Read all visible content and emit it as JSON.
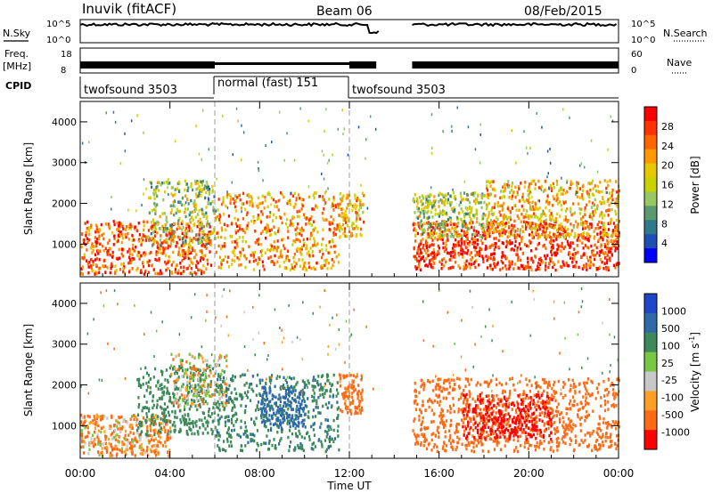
{
  "header": {
    "station": "Inuvik (fitACF)",
    "beam": "Beam 06",
    "date": "08/Feb/2015"
  },
  "aux": {
    "nsky_label": "N.Sky",
    "nsky_ticks": [
      "10^5",
      "10^0"
    ],
    "nsearch_label": "N.Search",
    "nsearch_ticks": [
      "10^5",
      "10^0"
    ],
    "freq_label_1": "Freq.",
    "freq_label_2": "[MHz]",
    "freq_ticks": [
      "18",
      "8"
    ],
    "nave_label": "Nave",
    "nave_ticks": [
      "60",
      "0"
    ],
    "cpid_label": "CPID",
    "cpid_segments": [
      {
        "label": "twofsound 3503",
        "start_hour": 0,
        "end_hour": 6
      },
      {
        "label": "normal (fast) 151",
        "start_hour": 6,
        "end_hour": 12
      },
      {
        "label": "twofsound 3503",
        "start_hour": 12,
        "end_hour": 24
      }
    ]
  },
  "colorbars": {
    "power": {
      "label": "Power [dB]",
      "ticks": [
        "28",
        "24",
        "20",
        "16",
        "12",
        "8",
        "4"
      ],
      "colors": [
        "#ff0000",
        "#ff3300",
        "#ff6600",
        "#ff9900",
        "#e8c800",
        "#c8d200",
        "#96c864",
        "#5a9a6e",
        "#2e7a8a",
        "#1e50b4",
        "#0000ff"
      ]
    },
    "velocity": {
      "label": "Velocity [m s",
      "label_sup": "-1",
      "label_end": "]",
      "ticks": [
        "1000",
        "500",
        "100",
        "25",
        "-25",
        "-100",
        "-500",
        "-1000"
      ],
      "colors": [
        "#1e46c8",
        "#2e6aa8",
        "#3c8a5a",
        "#78c846",
        "#c8c8c8",
        "#ffa028",
        "#ff6a14",
        "#ff0000"
      ]
    }
  },
  "chart_data": [
    {
      "type": "heatmap",
      "panel": "power",
      "ylabel": "Slant Range [km]",
      "ylim": [
        200,
        4500
      ],
      "yticks": [
        1000,
        2000,
        3000,
        4000
      ],
      "xlim": [
        0,
        24
      ],
      "xticks": [
        "00:00",
        "04:00",
        "08:00",
        "12:00",
        "16:00",
        "20:00",
        "00:00"
      ],
      "vertical_dashed_lines_hours": [
        6,
        12
      ],
      "data_gap_hours": [
        13.2,
        14.8
      ],
      "blobs": [
        {
          "t0": 0.0,
          "t1": 5.8,
          "r0": 300,
          "r1": 1600,
          "power": 26
        },
        {
          "t0": 3.0,
          "t1": 6.0,
          "r0": 1000,
          "r1": 2600,
          "power": 14
        },
        {
          "t0": 6.0,
          "t1": 11.5,
          "r0": 400,
          "r1": 2300,
          "power": 22
        },
        {
          "t0": 11.5,
          "t1": 12.6,
          "r0": 1200,
          "r1": 2300,
          "power": 20
        },
        {
          "t0": 14.8,
          "t1": 24.0,
          "r0": 400,
          "r1": 1600,
          "power": 28
        },
        {
          "t0": 14.8,
          "t1": 18.0,
          "r0": 1200,
          "r1": 2300,
          "power": 14
        },
        {
          "t0": 18.0,
          "t1": 24.0,
          "r0": 1200,
          "r1": 2600,
          "power": 20
        }
      ]
    },
    {
      "type": "heatmap",
      "panel": "velocity",
      "ylabel": "Slant Range [km]",
      "ylim": [
        200,
        4500
      ],
      "yticks": [
        1000,
        2000,
        3000,
        4000
      ],
      "xlim": [
        0,
        24
      ],
      "xlabel": "Time UT",
      "xticks": [
        "00:00",
        "04:00",
        "08:00",
        "12:00",
        "16:00",
        "20:00",
        "00:00"
      ],
      "vertical_dashed_lines_hours": [
        6,
        12
      ],
      "data_gap_hours": [
        13.2,
        14.8
      ],
      "blobs": [
        {
          "t0": 0.0,
          "t1": 4.0,
          "r0": 300,
          "r1": 1300,
          "velocity": -100
        },
        {
          "t0": 2.5,
          "t1": 6.0,
          "r0": 800,
          "r1": 2500,
          "velocity": 300
        },
        {
          "t0": 4.0,
          "t1": 6.5,
          "r0": 1500,
          "r1": 2800,
          "velocity": 0
        },
        {
          "t0": 6.0,
          "t1": 11.5,
          "r0": 400,
          "r1": 2300,
          "velocity": 400
        },
        {
          "t0": 8.0,
          "t1": 10.0,
          "r0": 1000,
          "r1": 2000,
          "velocity": 800
        },
        {
          "t0": 11.5,
          "t1": 12.6,
          "r0": 1300,
          "r1": 2300,
          "velocity": -200
        },
        {
          "t0": 14.8,
          "t1": 24.0,
          "r0": 400,
          "r1": 2200,
          "velocity": -300
        },
        {
          "t0": 17.0,
          "t1": 21.0,
          "r0": 700,
          "r1": 1800,
          "velocity": -600
        }
      ]
    }
  ]
}
